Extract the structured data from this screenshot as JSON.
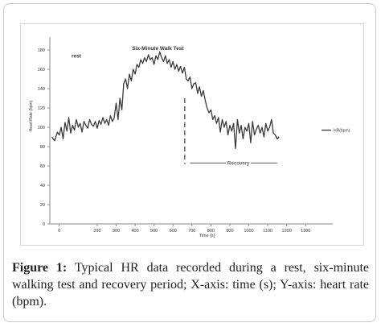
{
  "caption": {
    "label": "Figure 1:",
    "text": "Typical HR data recorded during a rest, six-minute walking test and recovery period; X-axis: time (s); Y-axis: heart rate (bpm)."
  },
  "chart_data": {
    "type": "line",
    "xlabel": "Time (s)",
    "ylabel": "Heart Rate (bpm)",
    "xlim": [
      -50,
      1350
    ],
    "ylim": [
      0,
      190
    ],
    "xticks": [
      0,
      200,
      300,
      400,
      500,
      600,
      700,
      800,
      900,
      1000,
      1100,
      1200,
      1300
    ],
    "xtick_labels": [
      "0",
      "200",
      "300",
      "400",
      "500",
      "600",
      "700",
      "800",
      "900",
      "1000",
      "1100",
      "1200",
      "1300"
    ],
    "yticks": [
      0,
      20,
      40,
      60,
      80,
      100,
      120,
      140,
      160,
      180
    ],
    "grid": false,
    "legend": {
      "position": "right",
      "entries": [
        "HR(bpm)"
      ]
    },
    "annotations": {
      "rest": "rest",
      "walk": "Six-Minute Walk Test",
      "recovery": "Recovery",
      "walk_end_x": 662,
      "recovery_x_range": [
        690,
        1150
      ],
      "recovery_y": 63
    },
    "series": [
      {
        "name": "HR(bpm)",
        "x": [
          -40,
          -25,
          -10,
          0,
          10,
          20,
          30,
          40,
          50,
          60,
          70,
          80,
          90,
          100,
          110,
          120,
          130,
          140,
          150,
          160,
          170,
          180,
          190,
          200,
          210,
          220,
          230,
          240,
          250,
          260,
          270,
          280,
          290,
          300,
          310,
          320,
          330,
          340,
          350,
          360,
          370,
          380,
          390,
          400,
          410,
          420,
          430,
          440,
          450,
          460,
          470,
          480,
          490,
          500,
          510,
          520,
          530,
          540,
          550,
          560,
          570,
          580,
          590,
          600,
          610,
          620,
          630,
          640,
          650,
          660,
          670,
          680,
          690,
          700,
          710,
          720,
          730,
          740,
          750,
          760,
          770,
          780,
          790,
          800,
          810,
          820,
          830,
          840,
          850,
          860,
          870,
          880,
          890,
          900,
          910,
          920,
          930,
          940,
          950,
          960,
          970,
          980,
          990,
          1000,
          1010,
          1020,
          1030,
          1040,
          1050,
          1060,
          1070,
          1080,
          1090,
          1100,
          1110,
          1120,
          1130,
          1140,
          1150,
          1160
        ],
        "values": [
          90,
          86,
          95,
          92,
          100,
          88,
          105,
          96,
          110,
          94,
          102,
          97,
          108,
          100,
          104,
          95,
          106,
          102,
          99,
          108,
          103,
          101,
          106,
          99,
          107,
          103,
          110,
          104,
          108,
          102,
          112,
          106,
          110,
          125,
          108,
          130,
          118,
          145,
          150,
          140,
          155,
          148,
          160,
          155,
          165,
          162,
          170,
          166,
          172,
          168,
          175,
          170,
          172,
          165,
          174,
          170,
          178,
          172,
          168,
          174,
          166,
          170,
          162,
          168,
          160,
          165,
          158,
          163,
          156,
          162,
          150,
          148,
          152,
          140,
          145,
          146,
          135,
          142,
          132,
          138,
          128,
          120,
          115,
          118,
          108,
          112,
          104,
          110,
          95,
          108,
          100,
          106,
          92,
          102,
          96,
          104,
          78,
          108,
          94,
          102,
          88,
          100,
          96,
          104,
          84,
          106,
          92,
          98,
          102,
          94,
          100,
          90,
          104,
          96,
          100,
          108,
          94,
          92,
          88,
          90
        ]
      }
    ]
  }
}
